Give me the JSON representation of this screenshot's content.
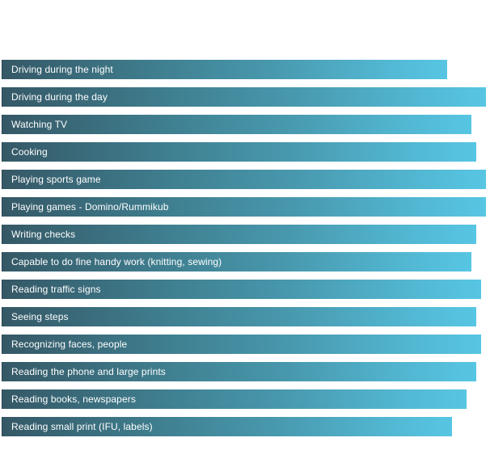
{
  "chart_data": {
    "type": "bar",
    "orientation": "horizontal",
    "title": "",
    "xlabel": "",
    "ylabel": "",
    "grid": false,
    "legend": "none",
    "xlim": [
      0,
      100
    ],
    "categories": [
      "Driving during the night",
      "Driving during the day",
      "Watching TV",
      "Cooking",
      "Playing sports game",
      "Playing games - Domino/Rummikub",
      "Writing checks",
      "Capable to do fine handy work (knitting, sewing)",
      "Reading traffic signs",
      "Seeing steps",
      "Recognizing faces, people",
      "Reading the phone and large prints",
      "Reading books, newspapers",
      "Reading small print (IFU, labels)"
    ],
    "values": [
      92,
      100,
      97,
      98,
      100,
      100,
      98,
      97,
      99,
      98,
      99,
      98,
      96,
      93
    ],
    "colors": {
      "gradient_start": "#355866",
      "gradient_mid": "#4898ad",
      "gradient_end": "#57c6e3",
      "label_text": "#ffffff"
    }
  }
}
